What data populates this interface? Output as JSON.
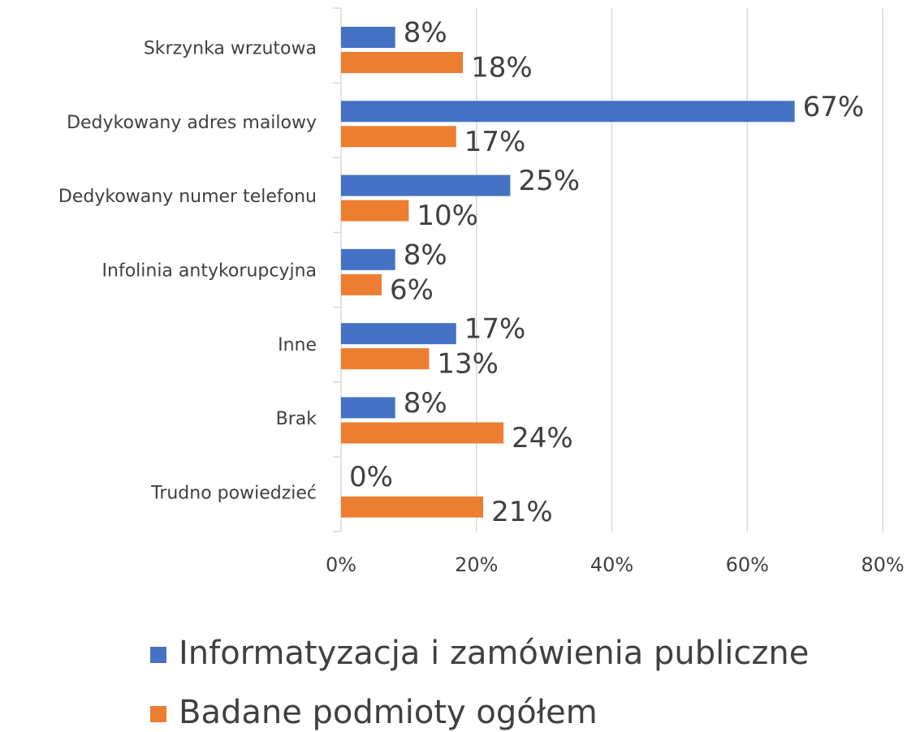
{
  "chart_data": {
    "type": "bar",
    "orientation": "horizontal",
    "categories": [
      "Skrzynka wrzutowa",
      "Dedykowany adres mailowy",
      "Dedykowany numer telefonu",
      "Infolinia antykorupcyjna",
      "Inne",
      "Brak",
      "Trudno powiedzieć"
    ],
    "series": [
      {
        "name": "Informatyzacja i zamówienia publiczne",
        "color": "#4472c4",
        "values": [
          8,
          67,
          25,
          8,
          17,
          8,
          0
        ],
        "value_labels": [
          "8%",
          "67%",
          "25%",
          "8%",
          "17%",
          "8%",
          "0%"
        ]
      },
      {
        "name": "Badane podmioty ogółem",
        "color": "#ed7d31",
        "values": [
          18,
          17,
          10,
          6,
          13,
          24,
          21
        ],
        "value_labels": [
          "18%",
          "17%",
          "10%",
          "6%",
          "13%",
          "24%",
          "21%"
        ]
      }
    ],
    "xlim": [
      0,
      80
    ],
    "xticks": [
      {
        "value": 0,
        "label": "0%"
      },
      {
        "value": 20,
        "label": "20%"
      },
      {
        "value": 40,
        "label": "40%"
      },
      {
        "value": 60,
        "label": "60%"
      },
      {
        "value": 80,
        "label": "80%"
      }
    ],
    "grid": true,
    "legend": "bottom"
  }
}
